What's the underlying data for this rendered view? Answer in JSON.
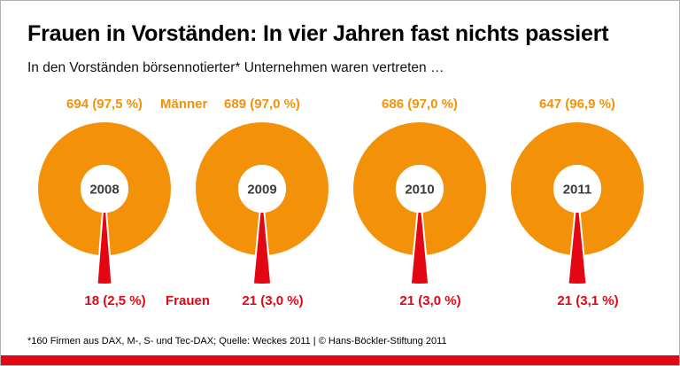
{
  "chart_data": {
    "type": "pie",
    "variant": "donut-series",
    "title": "Frauen in Vorständen: In vier Jahren fast nichts passiert",
    "subtitle": "In den Vorständen börsennotierter* Unternehmen waren vertreten …",
    "legend": {
      "men": "Männer",
      "women": "Frauen"
    },
    "donuts": [
      {
        "year": "2008",
        "men_value": 694,
        "men_pct": 97.5,
        "men_label": "694 (97,5 %)",
        "women_value": 18,
        "women_pct": 2.5,
        "women_label": "18 (2,5 %)"
      },
      {
        "year": "2009",
        "men_value": 689,
        "men_pct": 97.0,
        "men_label": "689 (97,0 %)",
        "women_value": 21,
        "women_pct": 3.0,
        "women_label": "21 (3,0 %)"
      },
      {
        "year": "2010",
        "men_value": 686,
        "men_pct": 97.0,
        "men_label": "686 (97,0 %)",
        "women_value": 21,
        "women_pct": 3.0,
        "women_label": "21 (3,0 %)"
      },
      {
        "year": "2011",
        "men_value": 647,
        "men_pct": 96.9,
        "men_label": "647 (96,9 %)",
        "women_value": 21,
        "women_pct": 3.1,
        "women_label": "21 (3,1 %)"
      }
    ],
    "footnote": "*160 Firmen aus DAX, M-, S- und Tec-DAX; Quelle: Weckes 2011 | © Hans-Böckler-Stiftung 2011"
  },
  "colors": {
    "men": "#F39208",
    "women": "#E30613",
    "accent_bar": "#E30613",
    "year_text": "#3C3C3B"
  }
}
